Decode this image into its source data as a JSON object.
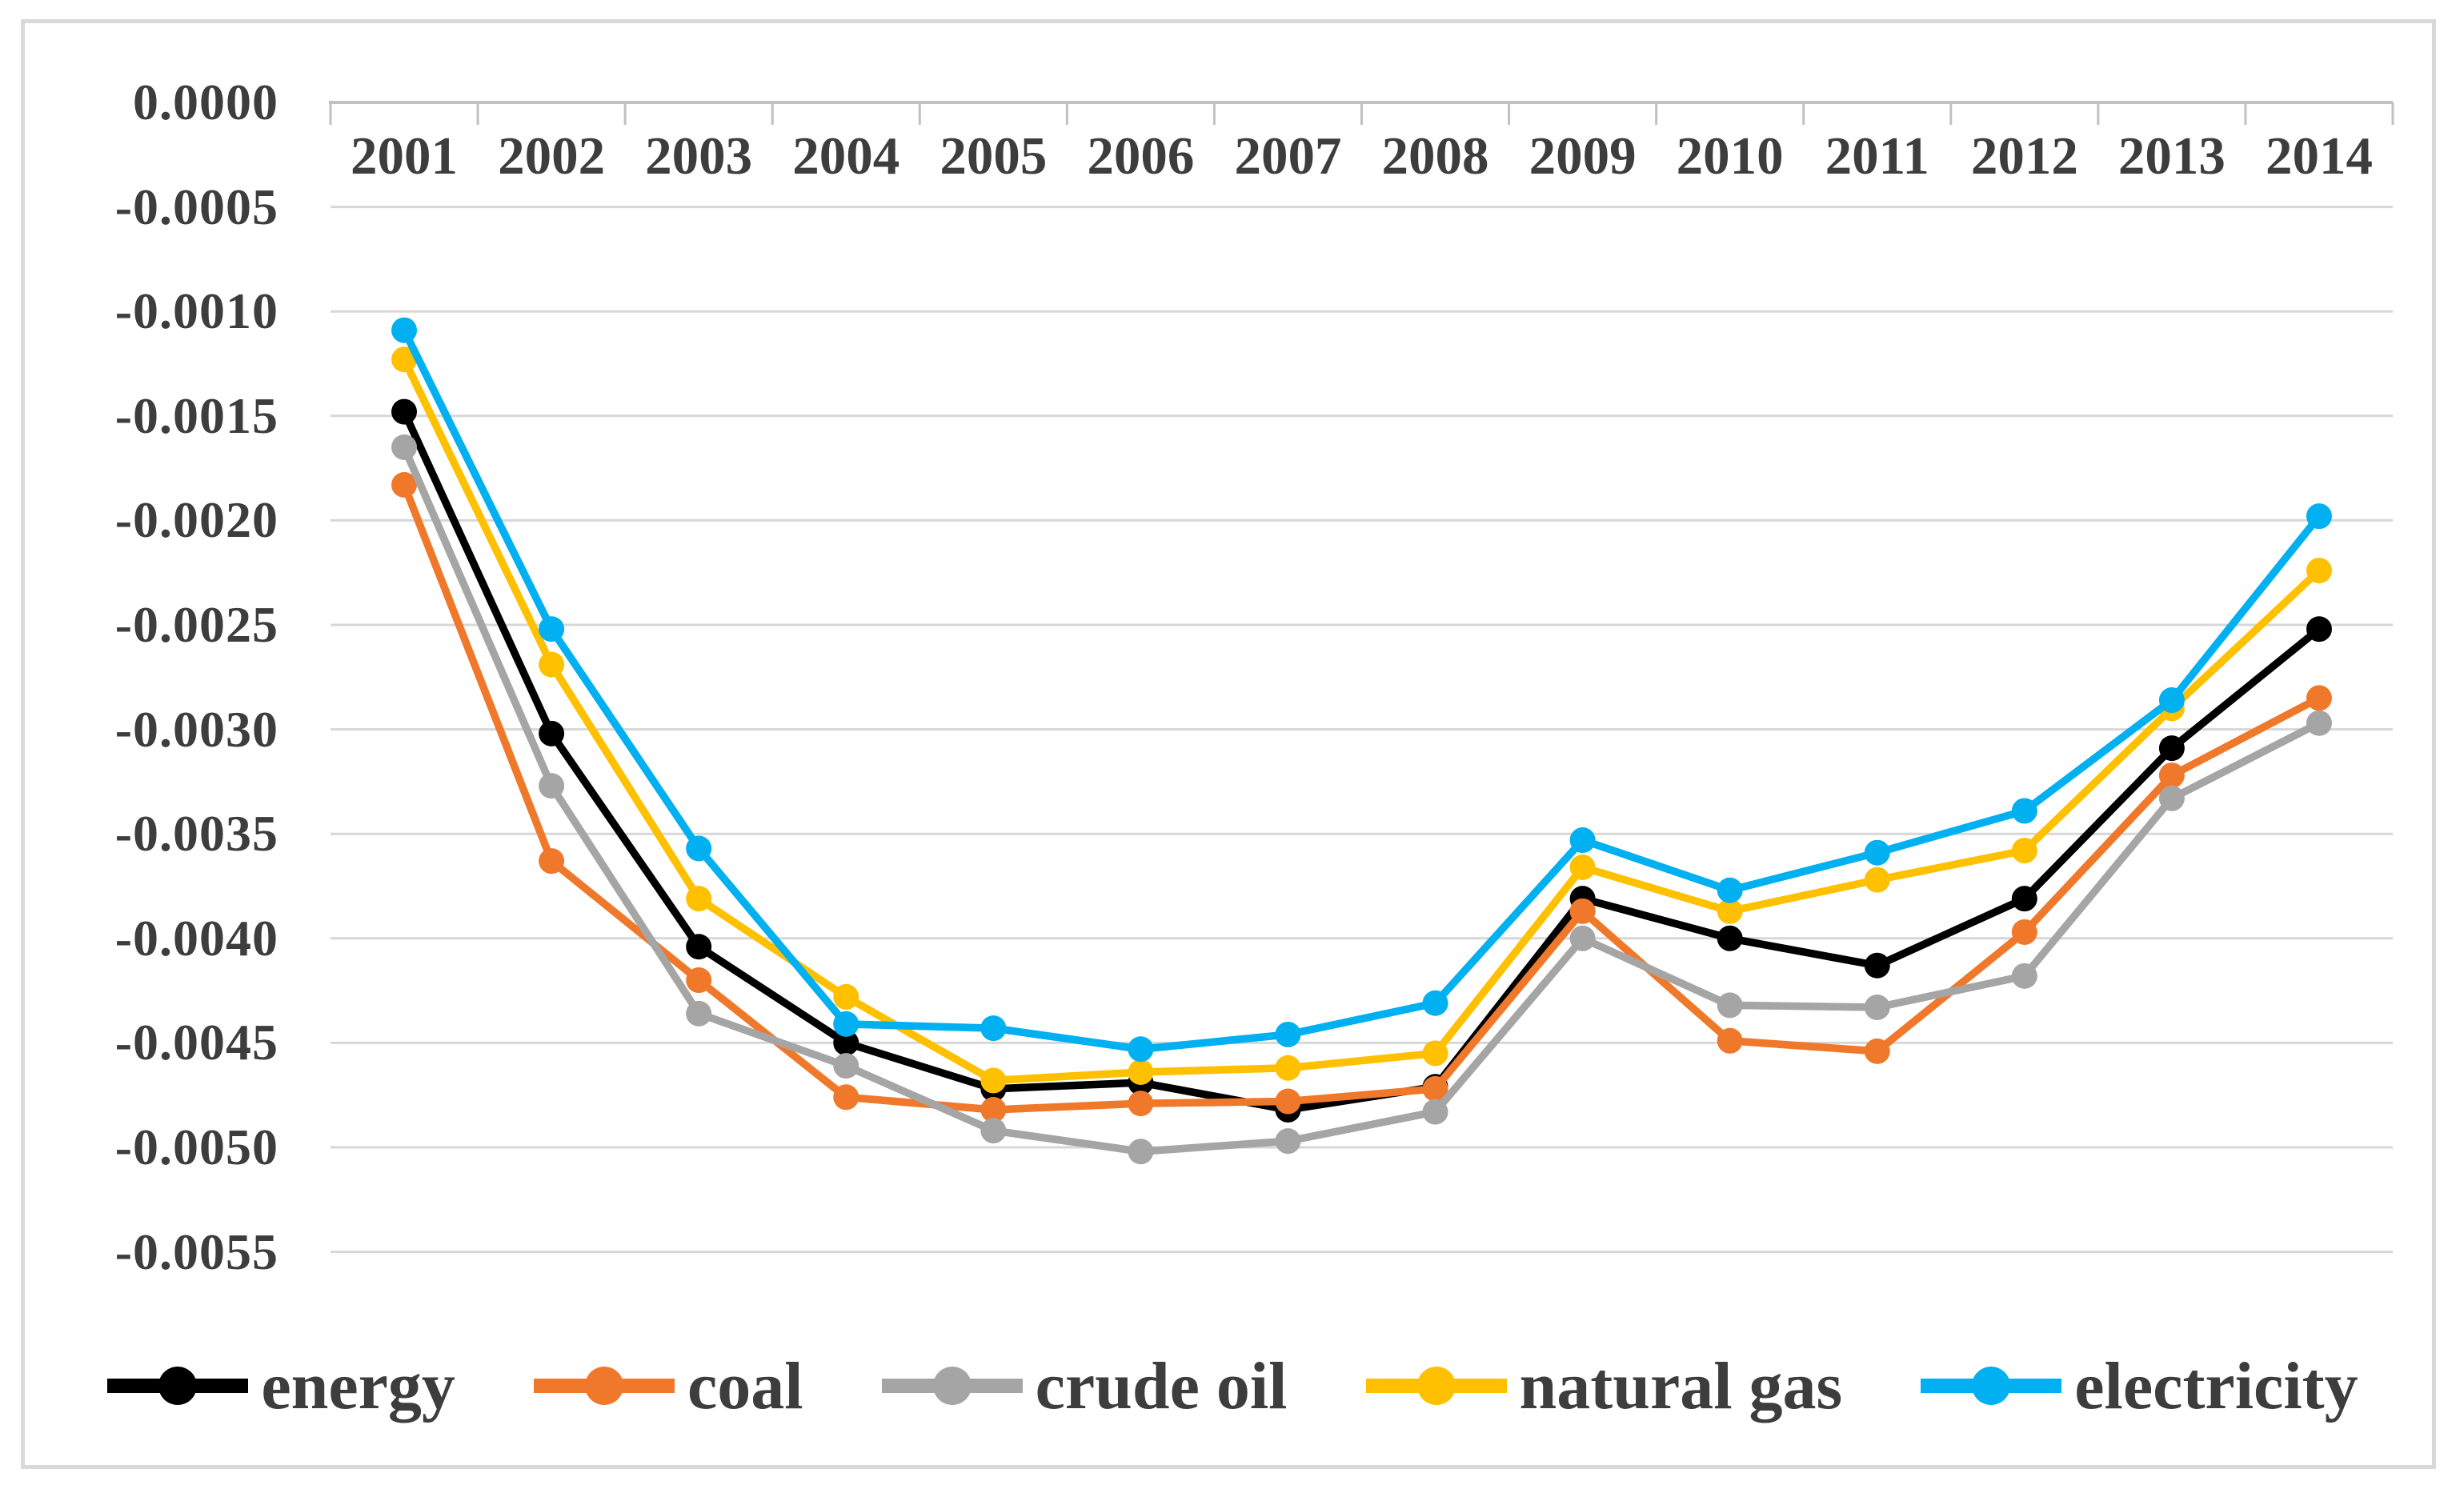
{
  "figure": {
    "frame_color": "#d9d9d9",
    "background": "#ffffff"
  },
  "chart_data": {
    "type": "line",
    "title": "",
    "xlabel": "",
    "ylabel": "",
    "grid": true,
    "legend_position": "bottom",
    "x_axis_position": "top",
    "ylim": [
      -0.0055,
      0.0
    ],
    "ytick_step": 0.0005,
    "yticks": [
      "0.0000",
      "-0.0005",
      "-0.0010",
      "-0.0015",
      "-0.0020",
      "-0.0025",
      "-0.0030",
      "-0.0035",
      "-0.0040",
      "-0.0045",
      "-0.0050",
      "-0.0055"
    ],
    "categories": [
      "2001",
      "2002",
      "2003",
      "2004",
      "2005",
      "2006",
      "2007",
      "2008",
      "2009",
      "2010",
      "2011",
      "2012",
      "2013",
      "2014"
    ],
    "series": [
      {
        "name": "energy",
        "color": "#000000",
        "values": [
          -0.00148,
          -0.00302,
          -0.00404,
          -0.0045,
          -0.00472,
          -0.00469,
          -0.00482,
          -0.00471,
          -0.00381,
          -0.004,
          -0.00413,
          -0.00381,
          -0.00309,
          -0.00252
        ]
      },
      {
        "name": "coal",
        "color": "#f0782a",
        "values": [
          -0.00183,
          -0.00363,
          -0.0042,
          -0.00476,
          -0.00482,
          -0.00479,
          -0.00478,
          -0.00472,
          -0.00387,
          -0.00449,
          -0.00454,
          -0.00397,
          -0.00322,
          -0.00285
        ]
      },
      {
        "name": "crude oil",
        "color": "#a5a5a5",
        "values": [
          -0.00165,
          -0.00327,
          -0.00436,
          -0.00461,
          -0.00492,
          -0.00502,
          -0.00497,
          -0.00483,
          -0.004,
          -0.00432,
          -0.00433,
          -0.00418,
          -0.00333,
          -0.00297
        ]
      },
      {
        "name": "natural gas",
        "color": "#ffc000",
        "values": [
          -0.00123,
          -0.00269,
          -0.00381,
          -0.00428,
          -0.00468,
          -0.00464,
          -0.00462,
          -0.00455,
          -0.00366,
          -0.00387,
          -0.00372,
          -0.00358,
          -0.0029,
          -0.00224
        ]
      },
      {
        "name": "electricity",
        "color": "#00b0f0",
        "values": [
          -0.00109,
          -0.00252,
          -0.00357,
          -0.00441,
          -0.00443,
          -0.00453,
          -0.00446,
          -0.00431,
          -0.00353,
          -0.00377,
          -0.00359,
          -0.00339,
          -0.00286,
          -0.00198
        ]
      }
    ],
    "style": {
      "gridline_color": "#d7d7d7",
      "axis_color": "#c1c1c1",
      "label_color": "#3d3d3d",
      "line_width": 9.5,
      "marker_radius": 16
    }
  }
}
